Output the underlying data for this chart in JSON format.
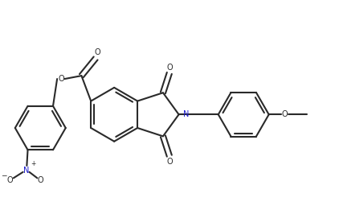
{
  "bg_color": "#ffffff",
  "bond_color": "#2a2a2a",
  "N_color": "#1a1acd",
  "line_width": 1.5,
  "figsize": [
    4.22,
    2.61
  ],
  "dpi": 100,
  "xlim": [
    -1.0,
    9.5
  ],
  "ylim": [
    -2.8,
    3.8
  ]
}
